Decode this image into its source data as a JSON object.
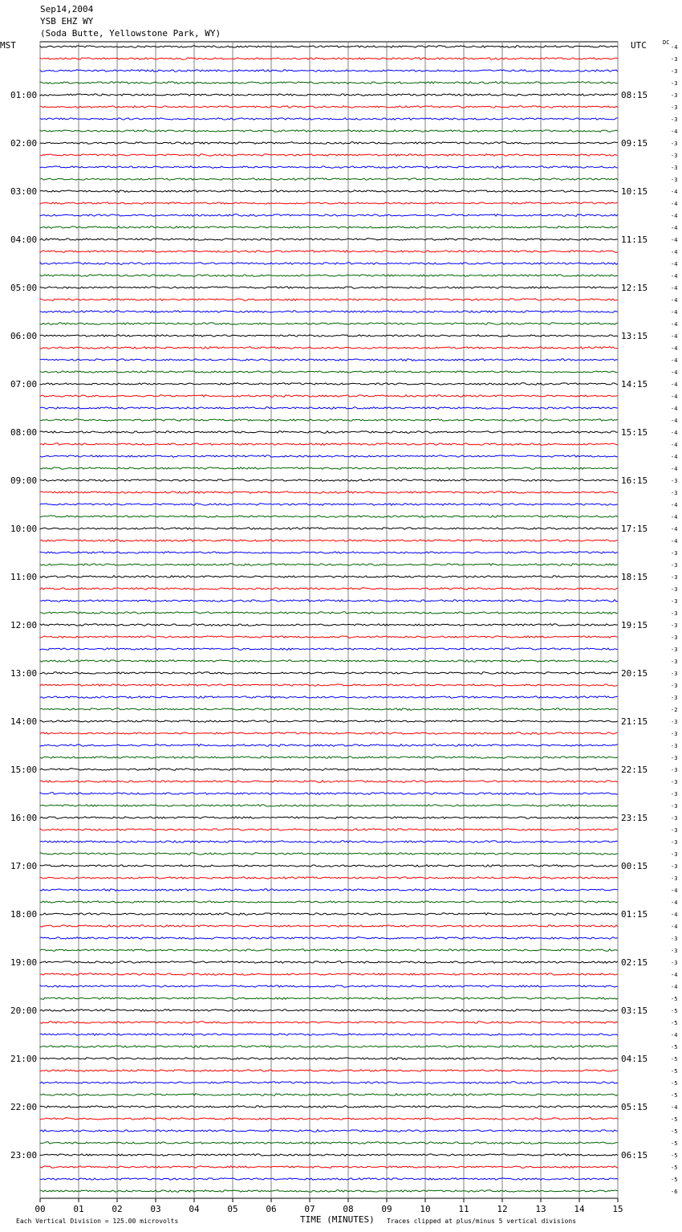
{
  "header": {
    "date": "Sep14,2004",
    "station": "YSB EHZ WY",
    "location": "(Soda Butte, Yellowstone Park, WY)"
  },
  "left_timezone": "MST",
  "right_timezone": "UTC",
  "dc_label": "DC",
  "footer": {
    "left": "Each Vertical Division =  125.00 microvolts",
    "xlabel": "TIME (MINUTES)",
    "right": "Traces clipped at plus/minus 5 vertical divisions"
  },
  "chart_data": {
    "type": "line",
    "subtype": "helicorder",
    "xlabel": "TIME (MINUTES)",
    "xlim": [
      0,
      15
    ],
    "x_ticks": [
      "00",
      "01",
      "02",
      "03",
      "04",
      "05",
      "06",
      "07",
      "08",
      "09",
      "10",
      "11",
      "12",
      "13",
      "14",
      "15"
    ],
    "trace_colors": [
      "#000000",
      "#ff0000",
      "#0000ff",
      "#006400"
    ],
    "traces_per_hour": 4,
    "left_hour_labels": [
      "",
      "01:00",
      "02:00",
      "03:00",
      "04:00",
      "05:00",
      "06:00",
      "07:00",
      "08:00",
      "09:00",
      "10:00",
      "11:00",
      "12:00",
      "13:00",
      "14:00",
      "15:00",
      "16:00",
      "17:00",
      "18:00",
      "19:00",
      "20:00",
      "21:00",
      "22:00",
      "23:00"
    ],
    "right_hour_labels": [
      "",
      "08:15",
      "09:15",
      "10:15",
      "11:15",
      "12:15",
      "13:15",
      "14:15",
      "15:15",
      "16:15",
      "17:15",
      "18:15",
      "19:15",
      "20:15",
      "21:15",
      "22:15",
      "23:15",
      "00:15",
      "01:15",
      "02:15",
      "03:15",
      "04:15",
      "05:15",
      "06:15"
    ],
    "dc_offsets": [
      -4,
      -3,
      -3,
      -3,
      -3,
      -3,
      -3,
      -4,
      -3,
      -3,
      -3,
      -3,
      -4,
      -4,
      -4,
      -4,
      -4,
      -4,
      -4,
      -4,
      -4,
      -4,
      -4,
      -4,
      -4,
      -4,
      -4,
      -4,
      -4,
      -4,
      -4,
      -4,
      -4,
      -4,
      -4,
      -4,
      -3,
      -3,
      -4,
      -4,
      -4,
      -4,
      -3,
      -3,
      -3,
      -3,
      -3,
      -3,
      -3,
      -3,
      -3,
      -3,
      -3,
      -3,
      -3,
      -2,
      -3,
      -3,
      -3,
      -3,
      -3,
      -3,
      -3,
      -3,
      -3,
      -3,
      -3,
      -3,
      -3,
      -3,
      -4,
      -4,
      -4,
      -4,
      -3,
      -3,
      -3,
      -4,
      -4,
      -5,
      -5,
      -5,
      -4,
      -5,
      -5,
      -5,
      -5,
      -5,
      -4,
      -5,
      -5,
      -5,
      -5,
      -5,
      -5,
      -6
    ]
  }
}
